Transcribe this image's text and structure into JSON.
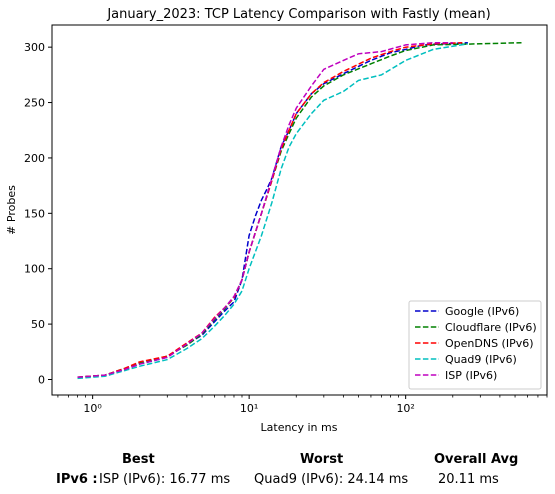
{
  "chart_data": {
    "type": "line",
    "title": "January_2023: TCP Latency Comparison with Fastly (mean)",
    "xlabel": "Latency in ms",
    "ylabel": "# Probes",
    "xscale": "log",
    "xlim": [
      0.55,
      800
    ],
    "ylim": [
      -14,
      320
    ],
    "x_tick_labels": [
      "10⁰",
      "10¹",
      "10²"
    ],
    "x_tick_values": [
      1,
      10,
      100
    ],
    "y_ticks": [
      0,
      50,
      100,
      150,
      200,
      250,
      300
    ],
    "grid": false,
    "legend_position": "lower-right",
    "series": [
      {
        "name": "Google (IPv6)",
        "color": "#0000cc",
        "dash": "dashed",
        "points": [
          [
            0.8,
            2
          ],
          [
            1.2,
            4
          ],
          [
            1.6,
            9
          ],
          [
            2.0,
            14
          ],
          [
            3.0,
            20
          ],
          [
            4.0,
            32
          ],
          [
            5.0,
            40
          ],
          [
            6.0,
            52
          ],
          [
            7.0,
            62
          ],
          [
            8.0,
            70
          ],
          [
            9.0,
            90
          ],
          [
            10.0,
            130
          ],
          [
            11.0,
            148
          ],
          [
            12.0,
            162
          ],
          [
            13.0,
            172
          ],
          [
            14.0,
            182
          ],
          [
            16.0,
            210
          ],
          [
            18.0,
            225
          ],
          [
            20.0,
            240
          ],
          [
            25.0,
            258
          ],
          [
            30.0,
            267
          ],
          [
            40.0,
            276
          ],
          [
            60.0,
            288
          ],
          [
            80.0,
            295
          ],
          [
            100.0,
            298
          ],
          [
            130.0,
            302
          ],
          [
            250.0,
            304
          ]
        ]
      },
      {
        "name": "Cloudflare (IPv6)",
        "color": "#008000",
        "dash": "dashed",
        "points": [
          [
            0.8,
            2
          ],
          [
            1.2,
            4
          ],
          [
            1.6,
            10
          ],
          [
            2.0,
            15
          ],
          [
            3.0,
            21
          ],
          [
            4.0,
            31
          ],
          [
            5.0,
            41
          ],
          [
            6.0,
            54
          ],
          [
            7.0,
            64
          ],
          [
            8.0,
            74
          ],
          [
            9.0,
            90
          ],
          [
            10.0,
            115
          ],
          [
            12.0,
            150
          ],
          [
            14.0,
            180
          ],
          [
            16.0,
            206
          ],
          [
            18.0,
            222
          ],
          [
            20.0,
            236
          ],
          [
            25.0,
            255
          ],
          [
            30.0,
            265
          ],
          [
            40.0,
            275
          ],
          [
            60.0,
            285
          ],
          [
            80.0,
            292
          ],
          [
            100.0,
            297
          ],
          [
            150.0,
            302
          ],
          [
            300.0,
            303
          ],
          [
            550.0,
            304
          ]
        ]
      },
      {
        "name": "OpenDNS (IPv6)",
        "color": "#ff0000",
        "dash": "dashed",
        "points": [
          [
            0.8,
            2
          ],
          [
            1.2,
            4
          ],
          [
            1.6,
            10
          ],
          [
            2.0,
            16
          ],
          [
            3.0,
            21
          ],
          [
            4.0,
            33
          ],
          [
            5.0,
            42
          ],
          [
            6.0,
            56
          ],
          [
            7.0,
            65
          ],
          [
            8.0,
            74
          ],
          [
            9.0,
            90
          ],
          [
            10.0,
            115
          ],
          [
            12.0,
            150
          ],
          [
            14.0,
            180
          ],
          [
            16.0,
            208
          ],
          [
            18.0,
            225
          ],
          [
            20.0,
            240
          ],
          [
            25.0,
            258
          ],
          [
            30.0,
            268
          ],
          [
            40.0,
            278
          ],
          [
            60.0,
            290
          ],
          [
            80.0,
            296
          ],
          [
            100.0,
            300
          ],
          [
            150.0,
            303
          ],
          [
            230.0,
            304
          ]
        ]
      },
      {
        "name": "Quad9 (IPv6)",
        "color": "#00bfbf",
        "dash": "dashed",
        "points": [
          [
            0.8,
            1
          ],
          [
            1.2,
            3
          ],
          [
            1.6,
            8
          ],
          [
            2.0,
            12
          ],
          [
            3.0,
            18
          ],
          [
            4.0,
            28
          ],
          [
            5.0,
            37
          ],
          [
            6.0,
            48
          ],
          [
            7.0,
            58
          ],
          [
            8.0,
            68
          ],
          [
            9.0,
            80
          ],
          [
            10.0,
            100
          ],
          [
            12.0,
            130
          ],
          [
            14.0,
            160
          ],
          [
            16.0,
            190
          ],
          [
            18.0,
            210
          ],
          [
            20.0,
            222
          ],
          [
            25.0,
            240
          ],
          [
            30.0,
            252
          ],
          [
            40.0,
            260
          ],
          [
            50.0,
            270
          ],
          [
            70.0,
            275
          ],
          [
            100.0,
            288
          ],
          [
            150.0,
            298
          ],
          [
            250.0,
            303
          ]
        ]
      },
      {
        "name": "ISP (IPv6)",
        "color": "#bf00bf",
        "dash": "dashed",
        "points": [
          [
            0.8,
            2
          ],
          [
            1.2,
            4
          ],
          [
            1.6,
            9
          ],
          [
            2.0,
            14
          ],
          [
            3.0,
            20
          ],
          [
            4.0,
            32
          ],
          [
            5.0,
            42
          ],
          [
            6.0,
            55
          ],
          [
            7.0,
            65
          ],
          [
            8.0,
            75
          ],
          [
            9.0,
            90
          ],
          [
            10.0,
            115
          ],
          [
            12.0,
            150
          ],
          [
            14.0,
            182
          ],
          [
            16.0,
            210
          ],
          [
            18.0,
            230
          ],
          [
            20.0,
            245
          ],
          [
            25.0,
            265
          ],
          [
            30.0,
            280
          ],
          [
            40.0,
            288
          ],
          [
            50.0,
            294
          ],
          [
            70.0,
            296
          ],
          [
            100.0,
            302
          ],
          [
            150.0,
            304
          ],
          [
            200.0,
            304
          ]
        ]
      }
    ]
  },
  "summary": {
    "best_header": "Best",
    "worst_header": "Worst",
    "avg_header": "Overall Avg",
    "row_label": "IPv6 :",
    "best_value": "ISP (IPv6): 16.77 ms",
    "worst_value": "Quad9 (IPv6): 24.14 ms",
    "avg_value": "20.11 ms"
  }
}
